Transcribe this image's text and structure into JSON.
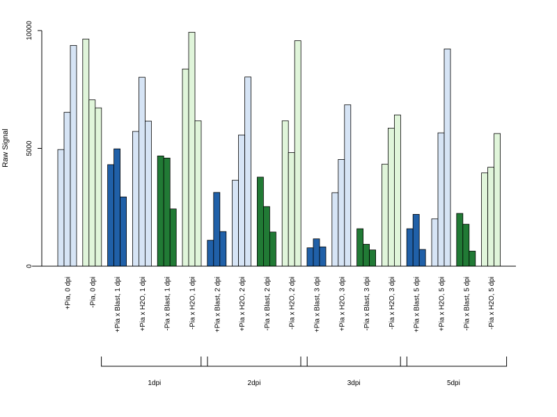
{
  "chart_data": {
    "type": "bar",
    "ylabel": "Raw Signal",
    "xlabel": "",
    "title": "",
    "ylim": [
      0,
      10000
    ],
    "yticks": [
      0,
      5000,
      10000
    ],
    "grid": false,
    "colors": {
      "light_blue": "#d6e4f5",
      "dark_blue": "#2060a8",
      "light_green": "#e0f5da",
      "dark_green": "#217a35",
      "outline": "#000000"
    },
    "categories": [
      {
        "label": "+Pia, 0 dpi",
        "values": [
          4950,
          6530,
          9370
        ],
        "color": "light_blue"
      },
      {
        "label": "-Pia, 0 dpi",
        "values": [
          9640,
          7060,
          6720
        ],
        "color": "light_green"
      },
      {
        "label": "+Pia x Blast, 1 dpi",
        "values": [
          4310,
          4980,
          2940
        ],
        "color": "dark_blue"
      },
      {
        "label": "+Pia x H2O, 1 dpi",
        "values": [
          5720,
          8020,
          6160
        ],
        "color": "light_blue"
      },
      {
        "label": "-Pia x Blast, 1 dpi",
        "values": [
          4680,
          4590,
          2430
        ],
        "color": "dark_green"
      },
      {
        "label": "-Pia x H2O, 1 dpi",
        "values": [
          8370,
          9930,
          6170
        ],
        "color": "light_green"
      },
      {
        "label": "+Pia x Blast, 2 dpi",
        "values": [
          1100,
          3130,
          1470
        ],
        "color": "dark_blue"
      },
      {
        "label": "+Pia x H2O, 2 dpi",
        "values": [
          3650,
          5570,
          8030
        ],
        "color": "light_blue"
      },
      {
        "label": "-Pia x Blast, 2 dpi",
        "values": [
          3780,
          2530,
          1450
        ],
        "color": "dark_green"
      },
      {
        "label": "-Pia x H2O, 2 dpi",
        "values": [
          6170,
          4820,
          9570
        ],
        "color": "light_green"
      },
      {
        "label": "+Pia x Blast, 3 dpi",
        "values": [
          780,
          1160,
          820
        ],
        "color": "dark_blue"
      },
      {
        "label": "+Pia x H2O, 3 dpi",
        "values": [
          3120,
          4530,
          6850
        ],
        "color": "light_blue"
      },
      {
        "label": "-Pia x Blast, 3 dpi",
        "values": [
          1590,
          930,
          690
        ],
        "color": "dark_green"
      },
      {
        "label": "-Pia x H2O, 3 dpi",
        "values": [
          4330,
          5860,
          6420
        ],
        "color": "light_green"
      },
      {
        "label": "+Pia x Blast, 5 dpi",
        "values": [
          1590,
          2200,
          710
        ],
        "color": "dark_blue"
      },
      {
        "label": "+Pia x H2O, 5 dpi",
        "values": [
          2010,
          5660,
          9220
        ],
        "color": "light_blue"
      },
      {
        "label": "-Pia x Blast, 5 dpi",
        "values": [
          2240,
          1780,
          640
        ],
        "color": "dark_green"
      },
      {
        "label": "-Pia x H2O, 5 dpi",
        "values": [
          3960,
          4200,
          5630
        ],
        "color": "light_green"
      }
    ],
    "group_brackets": [
      {
        "label": "1dpi",
        "from": 2,
        "to": 5
      },
      {
        "label": "2dpi",
        "from": 6,
        "to": 9
      },
      {
        "label": "3dpi",
        "from": 10,
        "to": 13
      },
      {
        "label": "5dpi",
        "from": 14,
        "to": 17
      }
    ]
  }
}
